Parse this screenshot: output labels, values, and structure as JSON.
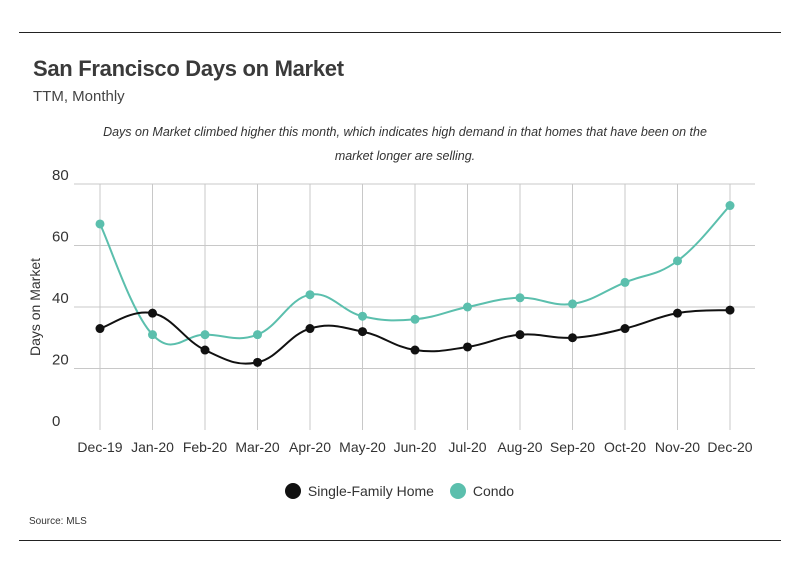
{
  "header": {
    "title": "San Francisco Days on Market",
    "subtitle": "TTM, Monthly",
    "annotation": "Days on Market climbed higher this month, which indicates high demand in that homes that have been on the market longer are selling."
  },
  "footer": {
    "source": "Source:  MLS"
  },
  "colors": {
    "single_family": "#111111",
    "condo": "#5bbfad",
    "grid": "#c8c8c8"
  },
  "chart_data": {
    "type": "line",
    "title": "San Francisco Days on Market",
    "subtitle": "TTM, Monthly",
    "xlabel": "",
    "ylabel": "Days on Market",
    "ylim": [
      0,
      80
    ],
    "yticks": [
      0,
      20,
      40,
      60,
      80
    ],
    "grid": true,
    "legend_position": "bottom",
    "categories": [
      "Dec-19",
      "Jan-20",
      "Feb-20",
      "Mar-20",
      "Apr-20",
      "May-20",
      "Jun-20",
      "Jul-20",
      "Aug-20",
      "Sep-20",
      "Oct-20",
      "Nov-20",
      "Dec-20"
    ],
    "series": [
      {
        "name": "Single-Family Home",
        "color": "#111111",
        "values": [
          33,
          38,
          26,
          22,
          33,
          32,
          26,
          27,
          31,
          30,
          33,
          38,
          39
        ]
      },
      {
        "name": "Condo",
        "color": "#5bbfad",
        "values": [
          67,
          31,
          31,
          31,
          44,
          37,
          36,
          40,
          43,
          41,
          48,
          55,
          73
        ]
      }
    ]
  }
}
